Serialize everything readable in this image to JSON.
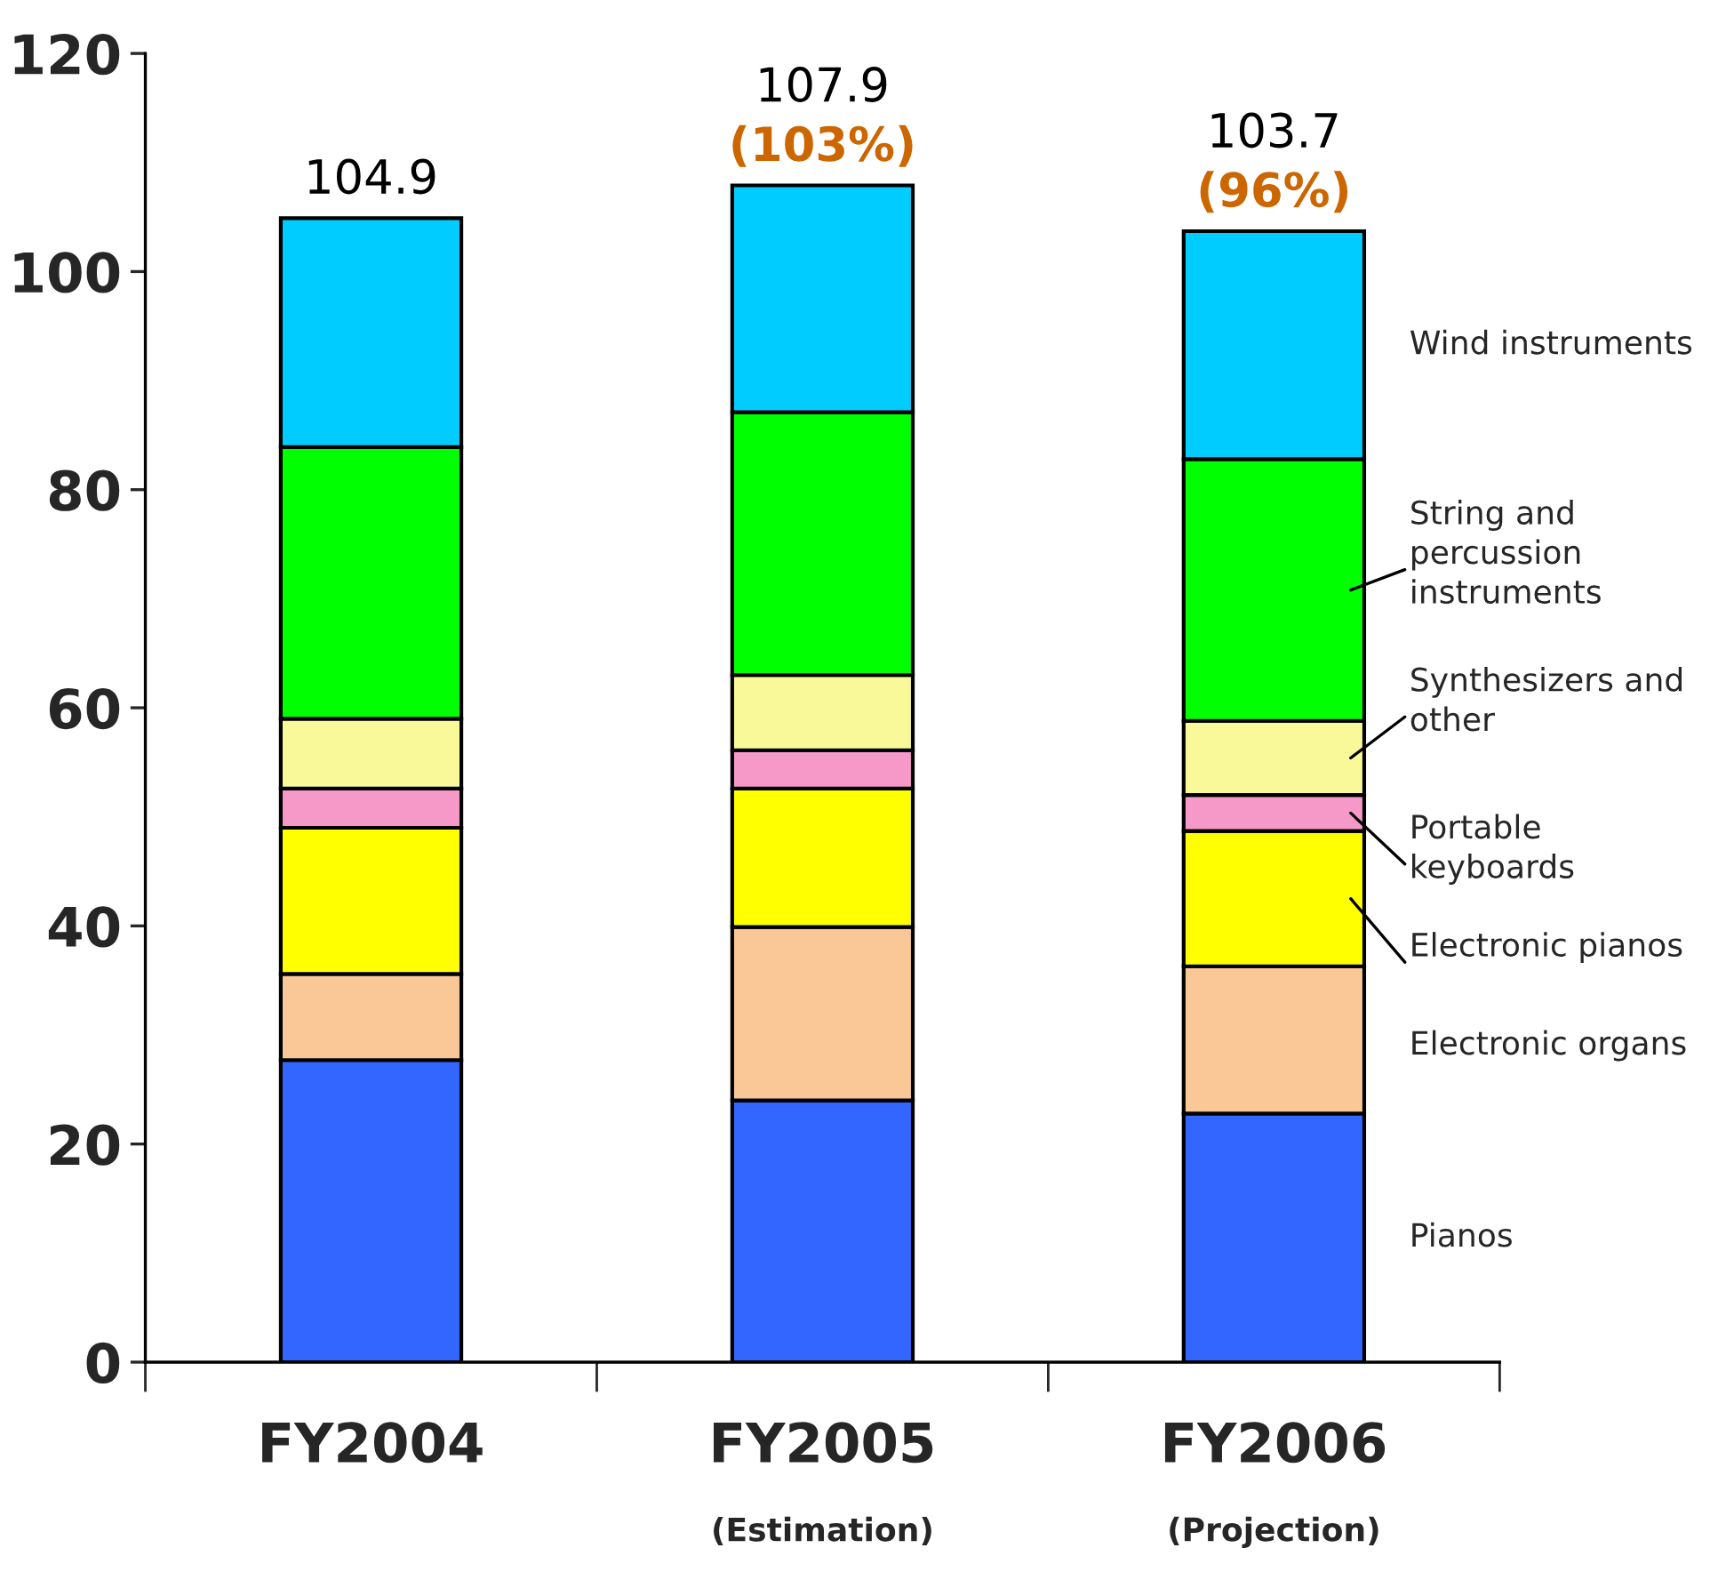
{
  "chart_data": {
    "type": "bar",
    "stacked": true,
    "categories": [
      "FY2004",
      "FY2005\n(Estimation)",
      "FY2006\n(Projection)"
    ],
    "series": [
      {
        "name": "Pianos",
        "color": "#3366ff",
        "values": [
          27.7,
          24.0,
          22.8
        ]
      },
      {
        "name": "Electronic organs",
        "color": "#f9c896",
        "values": [
          7.9,
          15.9,
          13.5
        ]
      },
      {
        "name": "Electronic pianos",
        "color": "#ffff00",
        "values": [
          13.4,
          12.7,
          12.4
        ]
      },
      {
        "name": "Portable keyboards",
        "color": "#f799c8",
        "values": [
          3.6,
          3.5,
          3.3
        ]
      },
      {
        "name": "Synthesizers and other",
        "color": "#f9f99a",
        "values": [
          6.4,
          6.9,
          6.8
        ]
      },
      {
        "name": "String and percussion instruments",
        "color": "#00ff00",
        "values": [
          24.9,
          24.1,
          24.0
        ]
      },
      {
        "name": "Wind instruments",
        "color": "#00ccff",
        "values": [
          21.0,
          20.8,
          20.9
        ]
      }
    ],
    "totals": [
      "104.9",
      "107.9\n(103%)",
      "103.7\n(96%)"
    ],
    "ylim": [
      0,
      120
    ],
    "yticks": [
      0,
      20,
      40,
      60,
      80,
      100,
      120
    ],
    "grid": false,
    "legend": "right"
  }
}
